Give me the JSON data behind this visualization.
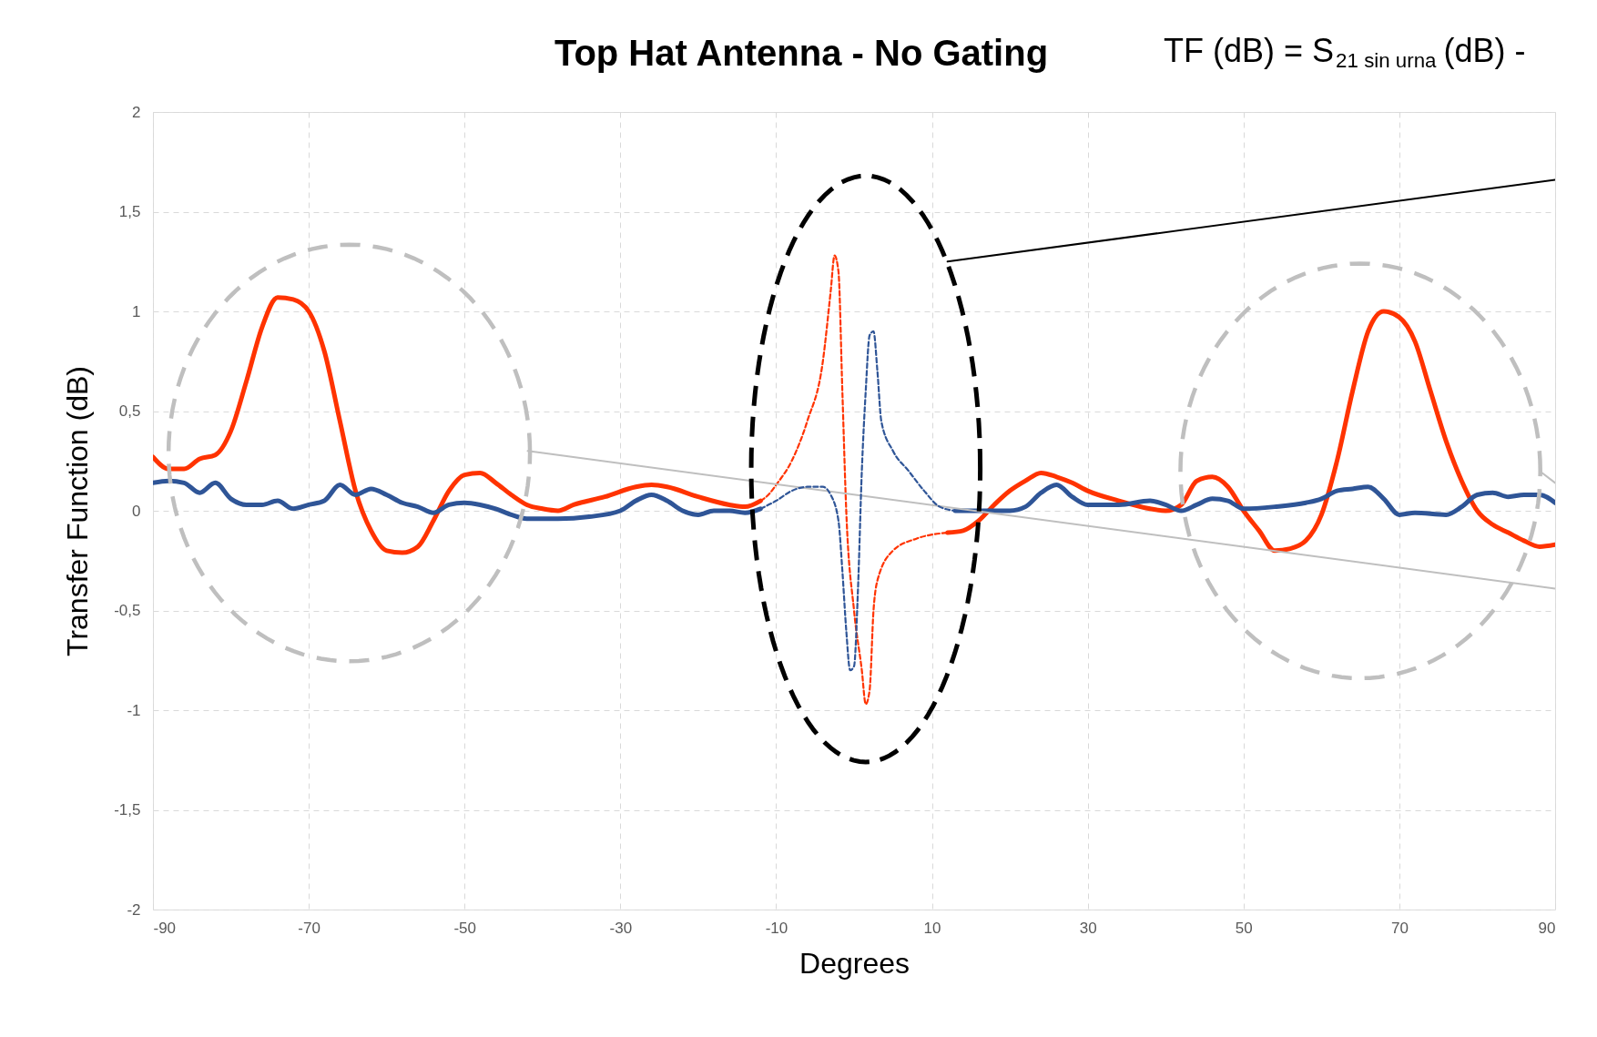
{
  "chart_data": {
    "type": "line",
    "title": "Top Hat Antenna - No Gating",
    "xlabel": "Degrees",
    "ylabel": "Transfer Function (dB)",
    "annotations": [
      "TF (dB) = S$_{21 sin urna}$ (dB) -"
    ],
    "xlim": [
      -90,
      90
    ],
    "xticks": [
      -90,
      -70,
      -50,
      -30,
      -10,
      10,
      30,
      50,
      70,
      90
    ],
    "ylim": [
      -2,
      2
    ],
    "yticks": [
      -2,
      {
        "value": -1.5,
        "label": "-1,5"
      },
      -1,
      {
        "value": -0.5,
        "label": "-0,5"
      },
      0,
      {
        "value": 0.5,
        "label": "0,5"
      },
      1,
      {
        "value": 1.5,
        "label": "1,5"
      },
      2
    ],
    "grid": true,
    "marker": "none",
    "series": [
      {
        "color": "#ff3300",
        "line_style": "solid",
        "x": [
          -90,
          -88,
          -86,
          -84,
          -82,
          -80,
          -78,
          -76,
          -74,
          -72,
          -70,
          -68,
          -66,
          -64,
          -62,
          -60,
          -58,
          -56,
          -54,
          -52,
          -50,
          -48,
          -46,
          -44,
          -42,
          -40,
          -38,
          -36,
          -32,
          -28,
          -26,
          -24,
          -20,
          -16,
          -14,
          -12,
          0,
          12,
          14,
          16,
          18,
          20,
          22,
          24,
          26,
          28,
          30,
          34,
          38,
          40,
          42,
          44,
          46,
          48,
          50,
          52,
          54,
          56,
          58,
          60,
          62,
          64,
          66,
          68,
          70,
          72,
          74,
          76,
          78,
          80,
          82,
          84,
          86,
          88,
          90
        ],
        "values": [
          0.27,
          0.21,
          0.21,
          0.26,
          0.28,
          0.4,
          0.65,
          0.92,
          1.07,
          1.06,
          1.0,
          0.8,
          0.45,
          0.1,
          -0.1,
          -0.2,
          -0.21,
          -0.18,
          -0.05,
          0.1,
          0.18,
          0.19,
          0.14,
          0.08,
          0.03,
          0.01,
          0.0,
          0.03,
          0.07,
          0.12,
          0.13,
          0.12,
          0.07,
          0.03,
          0.02,
          0.05,
          null,
          -0.11,
          -0.1,
          -0.05,
          0.03,
          0.1,
          0.15,
          0.19,
          0.17,
          0.14,
          0.1,
          0.05,
          0.01,
          0.0,
          0.03,
          0.15,
          0.17,
          0.12,
          0.0,
          -0.1,
          -0.2,
          -0.19,
          -0.15,
          -0.02,
          0.25,
          0.6,
          0.9,
          1.0,
          0.97,
          0.85,
          0.6,
          0.35,
          0.15,
          0.0,
          -0.07,
          -0.11,
          -0.15,
          -0.18,
          -0.17
        ]
      },
      {
        "color": "#ff3300",
        "line_style": "dashed",
        "x": [
          -12,
          -11,
          -10,
          -8,
          -6,
          -4,
          -3,
          -2.5,
          -2,
          -1.5,
          -1,
          0,
          1,
          1.5,
          2,
          2.5,
          3,
          5,
          8,
          12
        ],
        "values": [
          0.05,
          0.08,
          0.13,
          0.25,
          0.45,
          0.75,
          1.1,
          1.28,
          1.2,
          0.6,
          0.0,
          -0.5,
          -0.8,
          -0.97,
          -0.9,
          -0.5,
          -0.35,
          -0.2,
          -0.14,
          -0.11
        ]
      },
      {
        "color": "#2f5597",
        "line_style": "solid",
        "x": [
          -90,
          -88,
          -86,
          -84,
          -82,
          -80,
          -78,
          -76,
          -74,
          -72,
          -70,
          -68,
          -66,
          -64,
          -62,
          -60,
          -58,
          -56,
          -54,
          -52,
          -50,
          -48,
          -46,
          -44,
          -42,
          -38,
          -34,
          -30,
          -28,
          -26,
          -24,
          -22,
          -20,
          -18,
          -16,
          -14,
          -12,
          0,
          13,
          16,
          20,
          22,
          24,
          26,
          28,
          30,
          34,
          38,
          40,
          42,
          44,
          46,
          48,
          50,
          54,
          58,
          60,
          62,
          64,
          66,
          68,
          70,
          72,
          76,
          78,
          80,
          82,
          84,
          86,
          88,
          90
        ],
        "values": [
          0.14,
          0.15,
          0.14,
          0.09,
          0.14,
          0.06,
          0.03,
          0.03,
          0.05,
          0.01,
          0.03,
          0.05,
          0.13,
          0.08,
          0.11,
          0.08,
          0.04,
          0.02,
          -0.01,
          0.03,
          0.04,
          0.03,
          0.01,
          -0.02,
          -0.04,
          -0.04,
          -0.03,
          0.0,
          0.05,
          0.08,
          0.05,
          0.0,
          -0.02,
          0.0,
          0.0,
          -0.01,
          0.01,
          null,
          0.0,
          0.0,
          0.0,
          0.02,
          0.09,
          0.13,
          0.07,
          0.03,
          0.03,
          0.05,
          0.03,
          0.0,
          0.03,
          0.06,
          0.05,
          0.01,
          0.02,
          0.04,
          0.06,
          0.1,
          0.11,
          0.12,
          0.06,
          -0.02,
          -0.01,
          -0.02,
          0.02,
          0.08,
          0.09,
          0.07,
          0.08,
          0.08,
          0.04
        ]
      },
      {
        "type": "line",
        "color": "#000000",
        "line_style": "solid",
        "x": [
          12,
          90
        ],
        "values": [
          1.25,
          1.66
        ]
      },
      {
        "type": "line",
        "color": "#bfbfbf",
        "line_style": "solid",
        "x": [
          -41.9,
          90
        ],
        "values": [
          0.3,
          -0.39
        ]
      },
      {
        "type": "line",
        "color": "#bfbfbf",
        "line_style": "solid",
        "x": [
          88,
          90
        ],
        "values": [
          0.2,
          0.14
        ]
      },
      {
        "color": "#2f5597",
        "line_style": "dashed",
        "x": [
          -12,
          -10,
          -8,
          -6,
          -4,
          -3,
          -2,
          -1.5,
          -1,
          -0.5,
          0,
          0.5,
          1,
          1.5,
          2,
          2.5,
          3,
          3.5,
          5,
          7,
          9,
          11,
          13
        ],
        "values": [
          0.01,
          0.05,
          0.1,
          0.12,
          0.12,
          0.08,
          -0.05,
          -0.3,
          -0.6,
          -0.8,
          -0.78,
          -0.4,
          0.2,
          0.6,
          0.88,
          0.9,
          0.7,
          0.45,
          0.3,
          0.2,
          0.1,
          0.02,
          0.0
        ]
      }
    ]
  }
}
